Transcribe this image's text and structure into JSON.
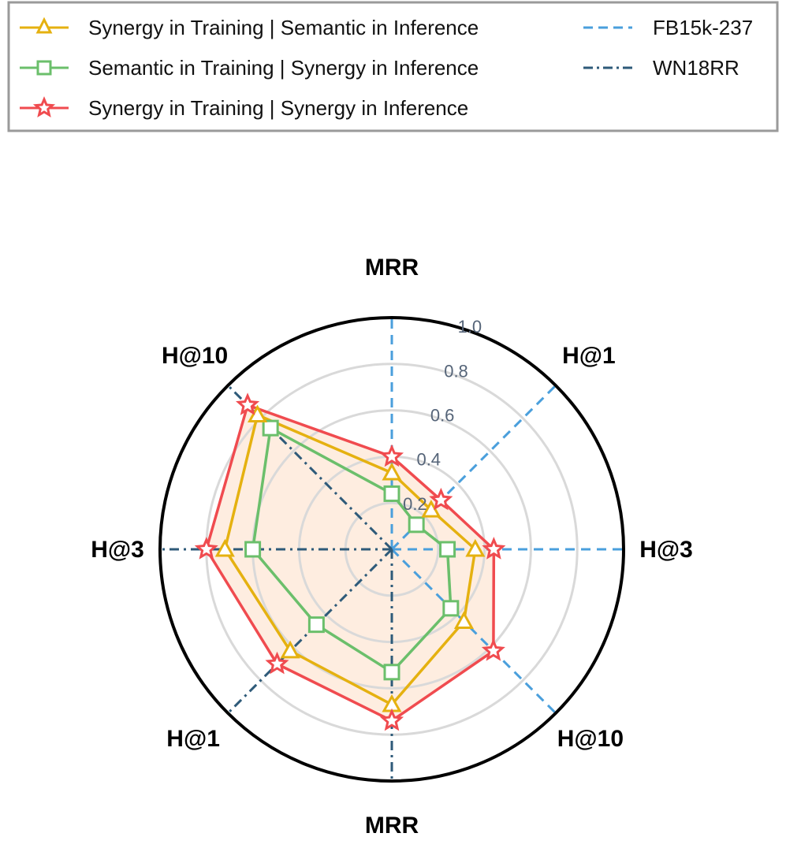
{
  "chart_data": {
    "type": "radar",
    "radial_range": [
      0,
      1.0
    ],
    "radial_ticks": [
      "0.2",
      "0.4",
      "0.6",
      "0.8",
      "1.0"
    ],
    "grid": true,
    "legend_position": "top",
    "axes": [
      "MRR",
      "H@1",
      "H@3",
      "H@10",
      "MRR",
      "H@1",
      "H@3",
      "H@10"
    ],
    "datasets": [
      {
        "name": "FB15k-237",
        "axes_index": [
          0,
          1,
          2,
          3
        ],
        "line_style": "dashed",
        "color": "#4a9fdc"
      },
      {
        "name": "WN18RR",
        "axes_index": [
          4,
          5,
          6,
          7
        ],
        "line_style": "dashdot",
        "color": "#2e5a79"
      }
    ],
    "series": [
      {
        "name": "Synergy in Training | Semantic in Inference",
        "marker": "triangle",
        "color": "#e5b110",
        "values": [
          0.33,
          0.24,
          0.36,
          0.44,
          0.67,
          0.62,
          0.72,
          0.82
        ]
      },
      {
        "name": "Semantic in Training | Synergy in Inference",
        "marker": "square",
        "color": "#6bbf6b",
        "values": [
          0.24,
          0.15,
          0.24,
          0.36,
          0.53,
          0.46,
          0.6,
          0.74
        ]
      },
      {
        "name": "Synergy in Training | Synergy in Inference",
        "marker": "star",
        "color": "#f04b4f",
        "values": [
          0.4,
          0.3,
          0.44,
          0.62,
          0.74,
          0.7,
          0.8,
          0.88
        ]
      }
    ]
  },
  "colors": {
    "fill": "#fde7d6",
    "grid": "#d9d9d9",
    "outer_circle": "#000000",
    "tick_text": "#556478"
  }
}
